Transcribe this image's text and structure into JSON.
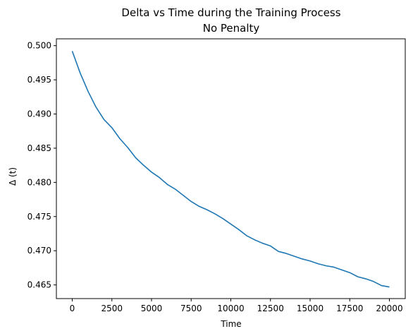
{
  "chart_data": {
    "type": "line",
    "title": "Delta vs Time during the Training Process",
    "subtitle": "No Penalty",
    "xlabel": "Time",
    "ylabel": "Δ (t)",
    "xlim": [
      -1000,
      21000
    ],
    "ylim": [
      0.463,
      0.501
    ],
    "xticks": [
      0,
      2500,
      5000,
      7500,
      10000,
      12500,
      15000,
      17500,
      20000
    ],
    "yticks": [
      0.465,
      0.47,
      0.475,
      0.48,
      0.485,
      0.49,
      0.495,
      0.5
    ],
    "grid": false,
    "line_color": "#1f77b4",
    "series": [
      {
        "x": [
          0,
          500,
          1000,
          1500,
          2000,
          2500,
          3000,
          3500,
          4000,
          4500,
          5000,
          5500,
          6000,
          6500,
          7000,
          7500,
          8000,
          8500,
          9000,
          9500,
          10000,
          10500,
          11000,
          11500,
          12000,
          12500,
          13000,
          13500,
          14000,
          14500,
          15000,
          15500,
          16000,
          16500,
          17000,
          17500,
          18000,
          18500,
          19000,
          19500,
          20000
        ],
        "values": [
          0.4992,
          0.496,
          0.4933,
          0.491,
          0.4892,
          0.488,
          0.4864,
          0.4851,
          0.4836,
          0.4825,
          0.4815,
          0.4807,
          0.4797,
          0.479,
          0.4781,
          0.4772,
          0.4765,
          0.476,
          0.4754,
          0.4747,
          0.4739,
          0.4731,
          0.4722,
          0.4716,
          0.4711,
          0.4707,
          0.4699,
          0.4696,
          0.4692,
          0.4688,
          0.4685,
          0.4681,
          0.4678,
          0.4676,
          0.4672,
          0.4668,
          0.4662,
          0.4659,
          0.4655,
          0.4649,
          0.4647
        ]
      }
    ]
  }
}
